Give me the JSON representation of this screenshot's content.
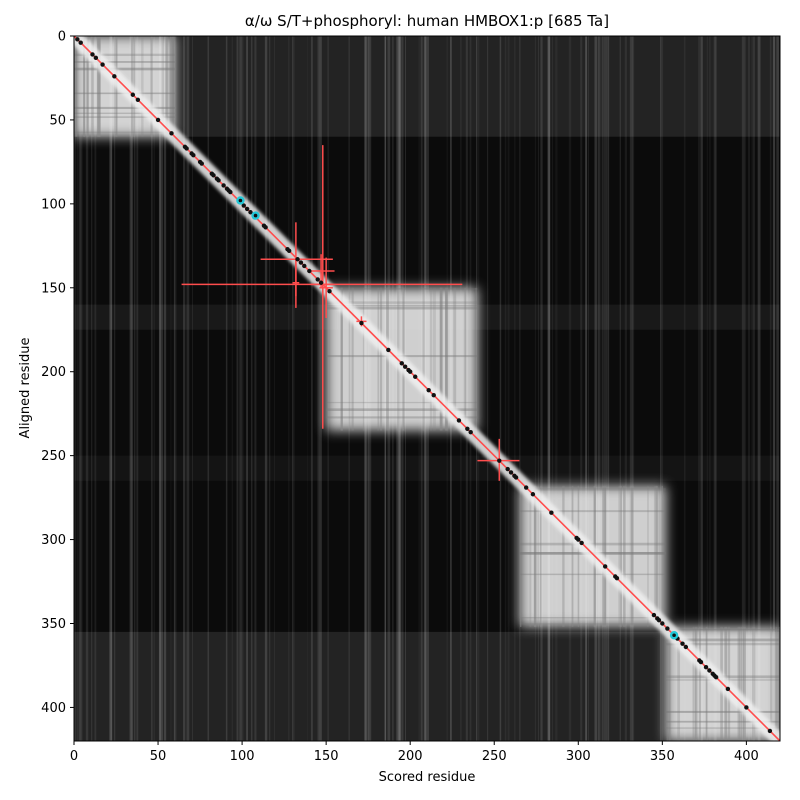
{
  "chart_data": {
    "type": "heatmap",
    "title": "α/ω S/T+phosphoryl: human HMBOX1:p [685 Ta]",
    "xlabel": "Scored residue",
    "ylabel": "Aligned residue",
    "xlim": [
      0,
      420
    ],
    "ylim": [
      420,
      0
    ],
    "x_ticks": [
      0,
      50,
      100,
      150,
      200,
      250,
      300,
      350,
      400
    ],
    "y_ticks": [
      0,
      50,
      100,
      150,
      200,
      250,
      300,
      350,
      400
    ],
    "colormap": "grayscale (black = low, white = high)",
    "grid": false,
    "colors": {
      "diagonal": "#ff4d4d",
      "error_bars": "#ff4d4d",
      "points": "#111111",
      "highlight": "#22c8d8",
      "background": "#0b0b0b",
      "high_block": "#f2f2f2"
    },
    "bright_blocks": [
      {
        "x": [
          0,
          60
        ],
        "y": [
          0,
          60
        ]
      },
      {
        "x": [
          150,
          240
        ],
        "y": [
          150,
          235
        ]
      },
      {
        "x": [
          265,
          352
        ],
        "y": [
          268,
          352
        ]
      },
      {
        "x": [
          352,
          420
        ],
        "y": [
          352,
          420
        ]
      }
    ],
    "diagonal_line": {
      "from": [
        0,
        0
      ],
      "to": [
        420,
        420
      ]
    },
    "points": [
      2,
      4,
      11,
      13,
      17,
      24,
      35,
      38,
      50,
      58,
      66,
      67,
      70,
      71,
      75,
      76,
      82,
      83,
      85,
      86,
      89,
      91,
      92,
      93,
      101,
      103,
      105,
      113,
      114,
      127,
      128,
      133,
      135,
      137,
      140,
      145,
      147,
      152,
      171,
      187,
      195,
      197,
      199,
      200,
      203,
      211,
      214,
      229,
      234,
      236,
      253,
      258,
      260,
      262,
      263,
      269,
      273,
      284,
      299,
      300,
      302,
      316,
      322,
      323,
      345,
      347,
      348,
      350,
      353,
      357,
      359,
      362,
      364,
      372,
      373,
      376,
      378,
      380,
      381,
      382,
      389,
      400,
      414
    ],
    "highlight_points": [
      {
        "x": 99,
        "y": 98
      },
      {
        "x": 108,
        "y": 107
      },
      {
        "x": 357,
        "y": 357
      }
    ],
    "error_bars": [
      {
        "x": 148,
        "y": 148,
        "xerr": [
          84,
          83
        ],
        "yerr": [
          8,
          5
        ]
      },
      {
        "x": 148,
        "y": 148,
        "xerr": [
          7,
          6
        ],
        "yerr": [
          83,
          86
        ]
      },
      {
        "x": 132,
        "y": 133,
        "xerr": [
          21,
          22
        ],
        "yerr": [
          22,
          22
        ]
      },
      {
        "x": 132,
        "y": 147,
        "xerr": [
          2,
          2
        ],
        "yerr": [
          15,
          15
        ]
      },
      {
        "x": 147,
        "y": 140,
        "xerr": [
          8,
          8
        ],
        "yerr": [
          10,
          10
        ]
      },
      {
        "x": 150,
        "y": 150,
        "xerr": [
          4,
          4
        ],
        "yerr": [
          18,
          18
        ]
      },
      {
        "x": 171,
        "y": 170,
        "xerr": [
          3,
          3
        ],
        "yerr": [
          3,
          3
        ]
      },
      {
        "x": 253,
        "y": 253,
        "xerr": [
          13,
          12
        ],
        "yerr": [
          13,
          12
        ]
      }
    ]
  }
}
